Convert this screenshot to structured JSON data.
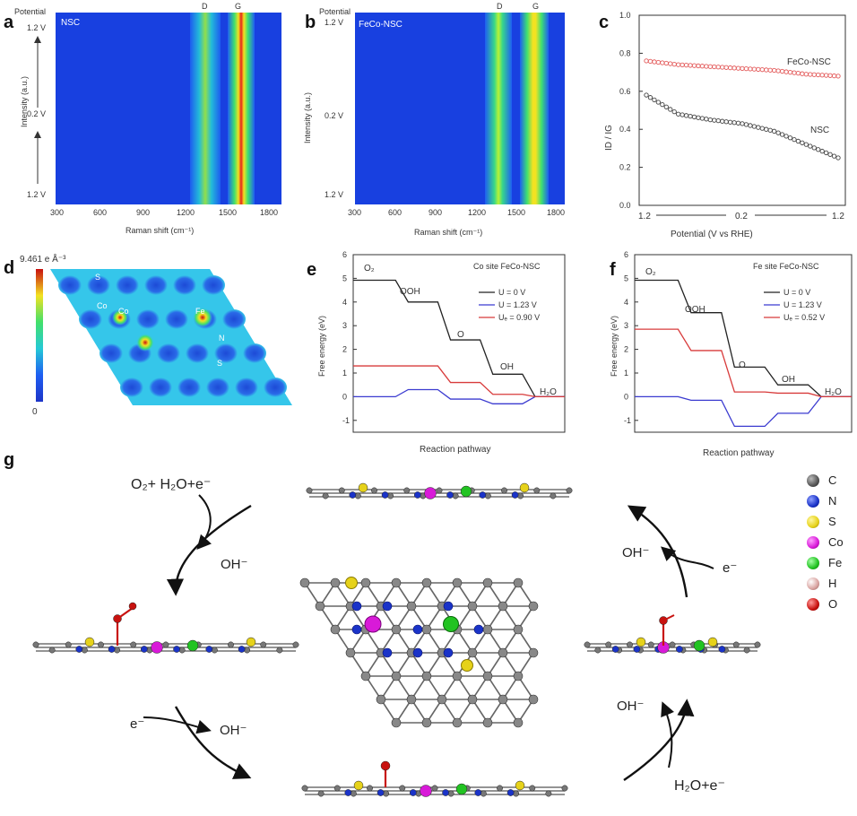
{
  "panels": {
    "a": {
      "label": "a",
      "title": "NSC",
      "potential_axis": "Potential",
      "intensity_axis": "Intensity (a.u.)",
      "y_ticks": [
        "1.2 V",
        "0.2 V",
        "1.2 V"
      ],
      "x_ticks": [
        "300",
        "600",
        "900",
        "1200",
        "1500",
        "1800"
      ],
      "xlabel": "Raman shift (cm⁻¹)",
      "peaks": [
        "D",
        "G"
      ]
    },
    "b": {
      "label": "b",
      "title": "FeCo-NSC",
      "potential_axis": "Potential",
      "intensity_axis": "Intensity (a.u.)",
      "y_ticks": [
        "1.2 V",
        "0.2 V",
        "1.2 V"
      ],
      "x_ticks": [
        "300",
        "600",
        "900",
        "1200",
        "1500",
        "1800"
      ],
      "xlabel": "Raman shift (cm⁻¹)",
      "peaks": [
        "D",
        "G"
      ]
    },
    "c": {
      "label": "c",
      "ylabel": "ID / IG",
      "xlabel": "Potential (V vs RHE)",
      "x_ticks": [
        "1.2",
        "0.2",
        "1.2"
      ],
      "y_ticks": [
        "0.0",
        "0.2",
        "0.4",
        "0.6",
        "0.8",
        "1.0"
      ],
      "series_labels": [
        "FeCo-NSC",
        "NSC"
      ]
    },
    "d": {
      "label": "d",
      "scale_max": "9.461 e Å⁻³",
      "scale_min": "0",
      "atom_labels": [
        "S",
        "Co",
        "Co",
        "Fe",
        "N",
        "S"
      ]
    },
    "e": {
      "label": "e",
      "title": "Co site FeCo-NSC",
      "ylabel": "Free energy (eV)",
      "xlabel": "Reaction pathway",
      "species": [
        "O₂",
        "OOH",
        "O",
        "OH",
        "H₂O"
      ],
      "legend": [
        "U  =  0  V",
        "U  = 1.23 V",
        "Uₑ = 0.90 V"
      ],
      "y_ticks": [
        "6",
        "5",
        "4",
        "3",
        "2",
        "1",
        "0",
        "-1"
      ]
    },
    "f": {
      "label": "f",
      "title": "Fe site FeCo-NSC",
      "ylabel": "Free energy (eV)",
      "xlabel": "Reaction pathway",
      "species": [
        "O₂",
        "OOH",
        "O",
        "OH",
        "H₂O"
      ],
      "legend": [
        "U  =  0  V",
        "U  = 1.23 V",
        "Uₑ = 0.52 V"
      ],
      "y_ticks": [
        "6",
        "5",
        "4",
        "3",
        "2",
        "1",
        "0",
        "-1"
      ]
    },
    "g": {
      "label": "g",
      "top_left": "O₂+ H₂O+e⁻",
      "oh_left": "OH⁻",
      "e_bottom_left": "e⁻",
      "oh_bottom_left": "OH⁻",
      "oh_top_right": "OH⁻",
      "e_top_right": "e⁻",
      "oh_bottom_right": "OH⁻",
      "bottom_right": "H₂O+e⁻",
      "legend": [
        {
          "el": "C",
          "color": "#555555"
        },
        {
          "el": "N",
          "color": "#1a33c8"
        },
        {
          "el": "S",
          "color": "#e6d21a"
        },
        {
          "el": "Co",
          "color": "#d81ad8"
        },
        {
          "el": "Fe",
          "color": "#22c322"
        },
        {
          "el": "H",
          "color": "#d9a3a0"
        },
        {
          "el": "O",
          "color": "#c8120f"
        }
      ]
    }
  },
  "chart_data": [
    {
      "type": "line",
      "title": "Co site FeCo-NSC",
      "xlabel": "Reaction pathway",
      "ylabel": "Free energy (eV)",
      "categories": [
        "O₂",
        "OOH",
        "O",
        "OH",
        "H₂O"
      ],
      "ylim": [
        -1.5,
        6
      ],
      "series": [
        {
          "name": "U = 0 V",
          "values": [
            4.92,
            4.0,
            2.4,
            0.95,
            0
          ]
        },
        {
          "name": "U = 1.23 V",
          "values": [
            0,
            0.3,
            -0.1,
            -0.3,
            0
          ]
        },
        {
          "name": "U = 0.90 V",
          "values": [
            1.3,
            1.3,
            0.6,
            0.1,
            0
          ]
        }
      ]
    },
    {
      "type": "line",
      "title": "Fe site FeCo-NSC",
      "xlabel": "Reaction pathway",
      "ylabel": "Free energy (eV)",
      "categories": [
        "O₂",
        "OOH",
        "O",
        "OH",
        "H₂O"
      ],
      "ylim": [
        -1.5,
        6
      ],
      "series": [
        {
          "name": "U = 0 V",
          "values": [
            4.92,
            3.55,
            1.25,
            0.5,
            0
          ]
        },
        {
          "name": "U = 1.23 V",
          "values": [
            0,
            -0.15,
            -1.25,
            -0.7,
            0
          ]
        },
        {
          "name": "U = 0.52 V",
          "values": [
            2.85,
            1.95,
            0.2,
            0.15,
            0
          ]
        }
      ]
    },
    {
      "type": "scatter",
      "title": "",
      "xlabel": "Potential (V vs RHE)",
      "ylabel": "ID / IG",
      "ylim": [
        0,
        1
      ],
      "series": [
        {
          "name": "FeCo-NSC",
          "values": [
            0.76,
            0.74,
            0.73,
            0.72,
            0.71,
            0.69,
            0.68
          ]
        },
        {
          "name": "NSC",
          "values": [
            0.58,
            0.48,
            0.45,
            0.43,
            0.39,
            0.32,
            0.25
          ]
        }
      ]
    }
  ]
}
